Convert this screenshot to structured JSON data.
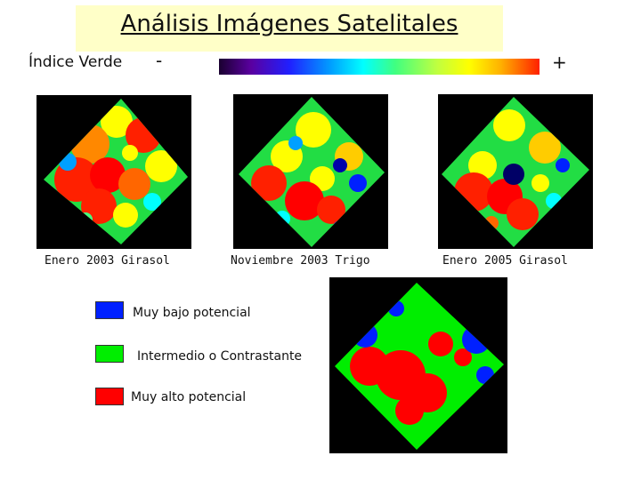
{
  "header": {
    "title": "Análisis Imágenes Satelitales",
    "index_label": "Índice Verde",
    "minus_sign": "-",
    "plus_sign": "+"
  },
  "images": [
    {
      "caption": "Enero 2003 Girasol"
    },
    {
      "caption": "Noviembre 2003 Trigo"
    },
    {
      "caption": "Enero 2005 Girasol"
    }
  ],
  "legend": {
    "items": [
      {
        "label": "Muy bajo potencial",
        "color": "#0020ff"
      },
      {
        "label": "Intermedio o Contrastante",
        "color": "#00ee00"
      },
      {
        "label": "Muy alto potencial",
        "color": "#ff0000"
      }
    ]
  },
  "colors": {
    "title_background": "#ffffc8",
    "image_background": "#000000"
  }
}
